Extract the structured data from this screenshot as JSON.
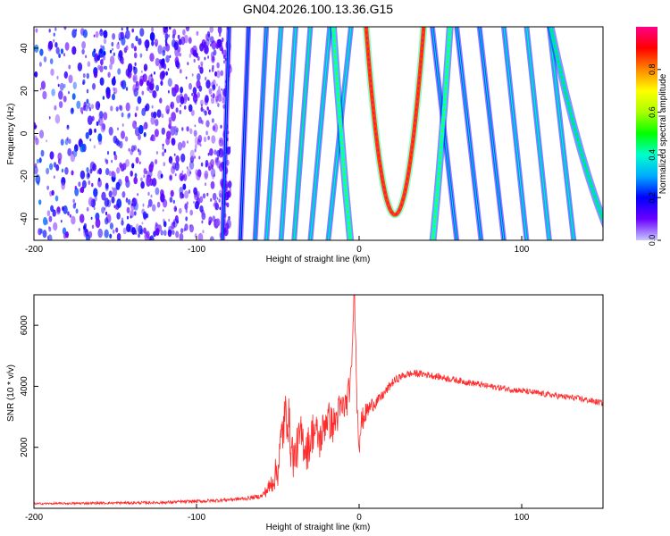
{
  "page_title": "GN04.2026.100.13.36.G15",
  "chart_data": [
    {
      "type": "heatmap",
      "title": "GN04.2026.100.13.36.G15",
      "xlabel": "Height of straight line (km)",
      "ylabel": "Frequency (Hz)",
      "xlim": [
        -200,
        150
      ],
      "ylim": [
        -50,
        50
      ],
      "x_ticks": [
        -200,
        -100,
        0,
        100
      ],
      "y_ticks": [
        -40,
        -20,
        0,
        20,
        40
      ],
      "colorbar": {
        "label": "Normalized spectral amplitude",
        "range": [
          0,
          1
        ],
        "ticks": [
          "0.0",
          "0.2",
          "0.4",
          "0.6",
          "0.8"
        ],
        "colors": [
          "#c8c8ff",
          "#6a00ff",
          "#0000ff",
          "#00aaff",
          "#00ffcc",
          "#00ff00",
          "#aaff00",
          "#ffff00",
          "#ff8800",
          "#ff0000",
          "#ff0088"
        ]
      },
      "noise_region_km": [
        -200,
        -90
      ],
      "streak_lines": [
        {
          "x_bottom": -84,
          "x_top": -80,
          "amp": 0.18
        },
        {
          "x_bottom": -73,
          "x_top": -68,
          "amp": 0.2
        },
        {
          "x_bottom": -64,
          "x_top": -57,
          "amp": 0.25
        },
        {
          "x_bottom": -57,
          "x_top": -48,
          "amp": 0.3
        },
        {
          "x_bottom": -48,
          "x_top": -39,
          "amp": 0.3
        },
        {
          "x_bottom": -40,
          "x_top": -30,
          "amp": 0.32
        },
        {
          "x_bottom": -30,
          "x_top": -18,
          "amp": 0.3
        },
        {
          "x_bottom": -19,
          "x_top": -5,
          "amp": 0.3
        },
        {
          "x_bottom": 60,
          "x_top": 45,
          "amp": 0.25
        },
        {
          "x_bottom": 75,
          "x_top": 60,
          "amp": 0.25
        },
        {
          "x_bottom": 89,
          "x_top": 74,
          "amp": 0.25
        },
        {
          "x_bottom": 103,
          "x_top": 89,
          "amp": 0.28
        },
        {
          "x_bottom": 117,
          "x_top": 103,
          "amp": 0.3
        },
        {
          "x_bottom": 132,
          "x_top": 117,
          "amp": 0.3
        }
      ],
      "parabola_arcs": [
        {
          "vertex_km": 20,
          "vertex_hz": -150,
          "curvature": 0.155,
          "amp": 0.4
        },
        {
          "vertex_km": 22,
          "vertex_hz": -38,
          "curvature": 0.28,
          "amp": 0.85
        },
        {
          "vertex_km": 190,
          "vertex_hz": -80,
          "curvature": 0.025,
          "amp": 0.35
        }
      ]
    },
    {
      "type": "line",
      "xlabel": "Height of straight line (km)",
      "ylabel": "SNR (10 * v/v)",
      "xlim": [
        -200,
        150
      ],
      "ylim": [
        0,
        7000
      ],
      "x_ticks": [
        -200,
        -100,
        0,
        100
      ],
      "y_ticks": [
        2000,
        4000,
        6000
      ],
      "series": [
        {
          "name": "SNR",
          "color": "#ff2a2a",
          "x": [
            -200,
            -160,
            -120,
            -90,
            -70,
            -60,
            -55,
            -50,
            -47,
            -44,
            -42,
            -40,
            -36,
            -32,
            -28,
            -24,
            -20,
            -16,
            -12,
            -8,
            -5,
            -3,
            -1,
            0,
            2,
            5,
            8,
            12,
            16,
            20,
            25,
            30,
            35,
            40,
            50,
            60,
            80,
            100,
            120,
            135,
            150
          ],
          "values": [
            150,
            170,
            190,
            250,
            320,
            400,
            700,
            1300,
            2600,
            3200,
            2100,
            1600,
            2400,
            1900,
            2600,
            2200,
            3000,
            2700,
            3200,
            3400,
            4200,
            7000,
            3200,
            2400,
            2900,
            3200,
            3400,
            3550,
            3800,
            4100,
            4300,
            4400,
            4420,
            4400,
            4300,
            4200,
            4000,
            3850,
            3700,
            3600,
            3450
          ],
          "noise": [
            30,
            40,
            50,
            60,
            60,
            80,
            300,
            600,
            900,
            900,
            800,
            700,
            700,
            700,
            700,
            650,
            650,
            600,
            600,
            500,
            500,
            0,
            800,
            700,
            400,
            300,
            250,
            180,
            150,
            150,
            130,
            120,
            120,
            110,
            110,
            110,
            100,
            100,
            100,
            100,
            100
          ]
        }
      ]
    }
  ]
}
